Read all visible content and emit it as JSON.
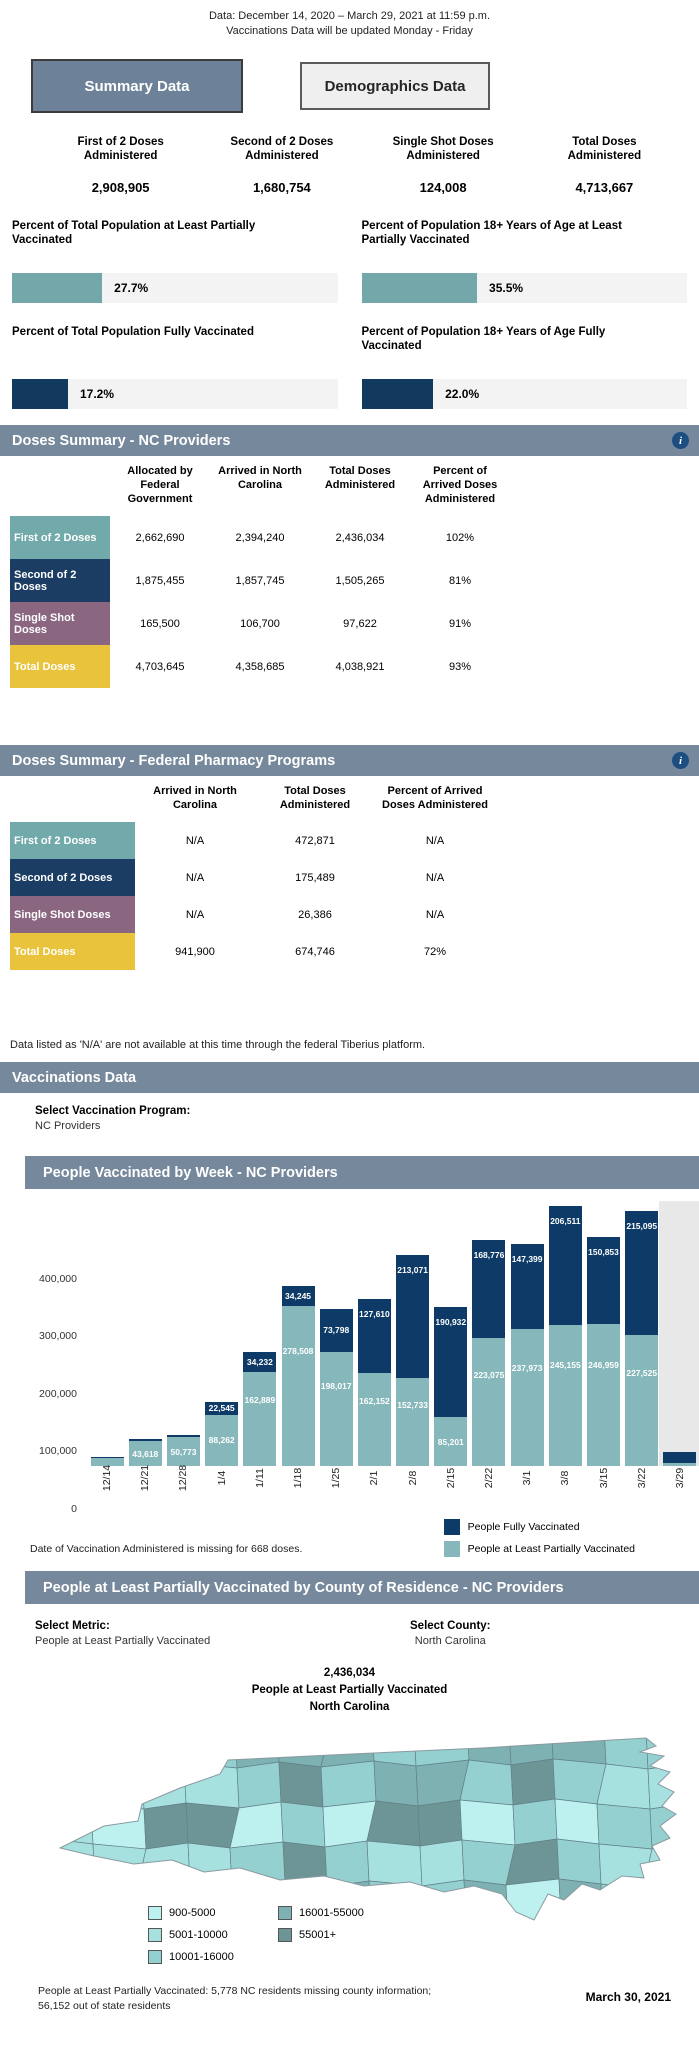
{
  "header": {
    "date_range": "Data: December 14, 2020 – March 29, 2021 at 11:59 p.m.",
    "update_note": "Vaccinations Data will be updated Monday - Friday"
  },
  "tabs": {
    "summary": "Summary Data",
    "demographics": "Demographics Data"
  },
  "stats": [
    {
      "label": "First of 2 Doses Administered",
      "value": "2,908,905"
    },
    {
      "label": "Second of 2 Doses Administered",
      "value": "1,680,754"
    },
    {
      "label": "Single Shot Doses Administered",
      "value": "124,008"
    },
    {
      "label": "Total Doses Administered",
      "value": "4,713,667"
    }
  ],
  "progress_bars": [
    {
      "label": "Percent of Total Population at Least Partially Vaccinated",
      "value": "27.7%",
      "pct": 27.7,
      "color": "#73a7a9"
    },
    {
      "label": "Percent of Population 18+ Years of Age at Least Partially Vaccinated",
      "value": "35.5%",
      "pct": 35.5,
      "color": "#73a7a9"
    },
    {
      "label": "Percent of Total Population Fully Vaccinated",
      "value": "17.2%",
      "pct": 17.2,
      "color": "#12395e"
    },
    {
      "label": "Percent of Population 18+ Years of Age Fully Vaccinated",
      "value": "22.0%",
      "pct": 22.0,
      "color": "#12395e"
    }
  ],
  "nc_table": {
    "title": "Doses Summary - NC Providers",
    "columns": [
      "Allocated by Federal Government",
      "Arrived in North Carolina",
      "Total Doses Administered",
      "Percent of Arrived Doses Administered"
    ],
    "rows": [
      {
        "label": "First of 2 Doses",
        "color": "#72a9ab",
        "values": [
          "2,662,690",
          "2,394,240",
          "2,436,034",
          "102%"
        ]
      },
      {
        "label": "Second of 2 Doses",
        "color": "#1b3d63",
        "values": [
          "1,875,455",
          "1,857,745",
          "1,505,265",
          "81%"
        ]
      },
      {
        "label": "Single Shot Doses",
        "color": "#8a6681",
        "values": [
          "165,500",
          "106,700",
          "97,622",
          "91%"
        ]
      },
      {
        "label": "Total Doses",
        "color": "#e9c33c",
        "values": [
          "4,703,645",
          "4,358,685",
          "4,038,921",
          "93%"
        ]
      }
    ]
  },
  "fed_table": {
    "title": "Doses Summary - Federal Pharmacy Programs",
    "columns": [
      "Arrived in North Carolina",
      "Total Doses Administered",
      "Percent of Arrived Doses Administered"
    ],
    "rows": [
      {
        "label": "First of 2 Doses",
        "color": "#72a9ab",
        "values": [
          "N/A",
          "472,871",
          "N/A"
        ]
      },
      {
        "label": "Second of 2 Doses",
        "color": "#1b3d63",
        "values": [
          "N/A",
          "175,489",
          "N/A"
        ]
      },
      {
        "label": "Single Shot Doses",
        "color": "#8a6681",
        "values": [
          "N/A",
          "26,386",
          "N/A"
        ]
      },
      {
        "label": "Total Doses",
        "color": "#e9c33c",
        "values": [
          "941,900",
          "674,746",
          "72%"
        ]
      }
    ],
    "footnote": "Data listed as 'N/A' are not available at this time through the federal Tiberius platform."
  },
  "vaccinations_section": {
    "title": "Vaccinations Data",
    "program_label": "Select Vaccination Program:",
    "program_value": "NC Providers"
  },
  "chart_data": {
    "type": "bar",
    "stacked": true,
    "title": "People Vaccinated by Week - NC Providers",
    "categories": [
      "12/14",
      "12/21",
      "12/28",
      "1/4",
      "1/11",
      "1/18",
      "1/25",
      "2/1",
      "2/8",
      "2/15",
      "2/22",
      "3/1",
      "3/8",
      "3/15",
      "3/22",
      "3/29"
    ],
    "series": [
      {
        "name": "People at Least Partially Vaccinated",
        "color": "#86b7ba",
        "values": [
          15000,
          43618,
          50773,
          88262,
          162889,
          278508,
          198017,
          162152,
          152733,
          85201,
          223075,
          237973,
          245155,
          246959,
          227525,
          6000
        ],
        "labels": [
          null,
          "43,618",
          "50,773",
          "88,262",
          "162,889",
          "278,508",
          "198,017",
          "162,152",
          "152,733",
          "85,201",
          "223,075",
          "237,973",
          "245,155",
          "246,959",
          "227,525",
          null
        ]
      },
      {
        "name": "People Fully Vaccinated",
        "color": "#0d3a66",
        "values": [
          1500,
          2500,
          3200,
          22545,
          34232,
          34245,
          73798,
          127610,
          213071,
          190932,
          168776,
          147399,
          206511,
          150853,
          215095,
          18000
        ],
        "labels": [
          null,
          null,
          null,
          "22,545",
          "34,232",
          "34,245",
          "73,798",
          "127,610",
          "213,071",
          "190,932",
          "168,776",
          "147,399",
          "206,511",
          "150,853",
          "215,095",
          null
        ]
      }
    ],
    "ylim": [
      0,
      460000
    ],
    "yticks": [
      0,
      100000,
      200000,
      300000,
      400000
    ],
    "ytick_labels": [
      "0",
      "100,000",
      "200,000",
      "300,000",
      "400,000"
    ],
    "highlight_last_column": true,
    "legend": [
      {
        "label": "People Fully Vaccinated",
        "color": "#0d3a66"
      },
      {
        "label": "People at Least Partially Vaccinated",
        "color": "#86b7ba"
      }
    ],
    "note": "Date of Vaccination Administered is missing for 668 doses."
  },
  "county_section": {
    "title": "People at Least Partially Vaccinated by County of Residence - NC Providers",
    "metric_label": "Select Metric:",
    "metric_value": "People at Least Partially Vaccinated",
    "county_label": "Select County:",
    "county_value": "North Carolina",
    "map_title_value": "2,436,034",
    "map_title_metric": "People at Least Partially Vaccinated",
    "map_title_region": "North Carolina",
    "legend": [
      {
        "label": "900-5000",
        "color": "#bcf1f0"
      },
      {
        "label": "5001-10000",
        "color": "#a6e1e0"
      },
      {
        "label": "10001-16000",
        "color": "#93d0cf"
      },
      {
        "label": "16001-55000",
        "color": "#7db1b2"
      },
      {
        "label": "55001+",
        "color": "#6d9596"
      }
    ],
    "footnote_line1": "People at Least Partially Vaccinated: 5,778 NC residents missing county information;",
    "footnote_line2": "56,152 out of state residents",
    "footer_date": "March 30, 2021"
  }
}
